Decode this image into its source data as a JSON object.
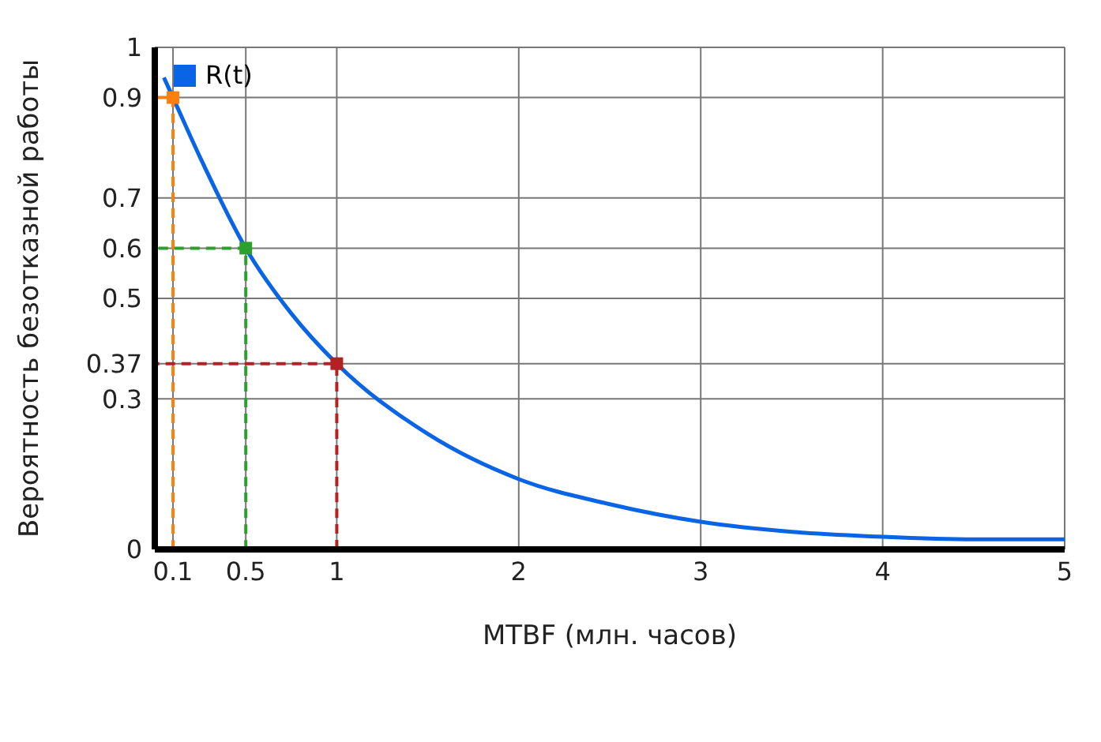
{
  "chart_data": {
    "type": "line",
    "xlabel": "MTBF (млн. часов)",
    "ylabel": "Вероятность безотказной работы",
    "xlim": [
      0,
      5
    ],
    "ylim": [
      0,
      1
    ],
    "xticks": [
      0.1,
      0.5,
      1,
      2,
      3,
      4,
      5
    ],
    "yticks": [
      0,
      0.3,
      0.37,
      0.5,
      0.6,
      0.7,
      0.9,
      1
    ],
    "grid": true,
    "legend": "top left",
    "series": [
      {
        "name": "R(t)",
        "color": "#0a64e6",
        "x": [
          0.05,
          0.1,
          0.25,
          0.5,
          0.75,
          1,
          1.5,
          2,
          2.5,
          3,
          3.5,
          4,
          4.5,
          5
        ],
        "values": [
          0.94,
          0.9,
          0.78,
          0.6,
          0.47,
          0.37,
          0.23,
          0.14,
          0.09,
          0.055,
          0.035,
          0.025,
          0.02,
          0.02
        ]
      },
      {
        "color": "#ff7f0e",
        "line_style": "dashed",
        "marker": "none",
        "x": [
          0.1,
          0.1,
          0
        ],
        "values": [
          0,
          0.9,
          0.9
        ]
      },
      {
        "color": "#2ca02c",
        "line_style": "dashed",
        "marker": "none",
        "x": [
          0.5,
          0.5,
          0
        ],
        "values": [
          0,
          0.6,
          0.6
        ]
      },
      {
        "color": "#b22222",
        "line_style": "dashed",
        "marker": "none",
        "x": [
          1,
          1,
          0
        ],
        "values": [
          0,
          0.37,
          0.37
        ]
      },
      {
        "type": "scatter",
        "marker": "square",
        "colors": [
          "#ff7f0e",
          "#2ca02c",
          "#b22222"
        ],
        "x": [
          0.1,
          0.5,
          1
        ],
        "values": [
          0.9,
          0.6,
          0.37
        ]
      }
    ]
  }
}
